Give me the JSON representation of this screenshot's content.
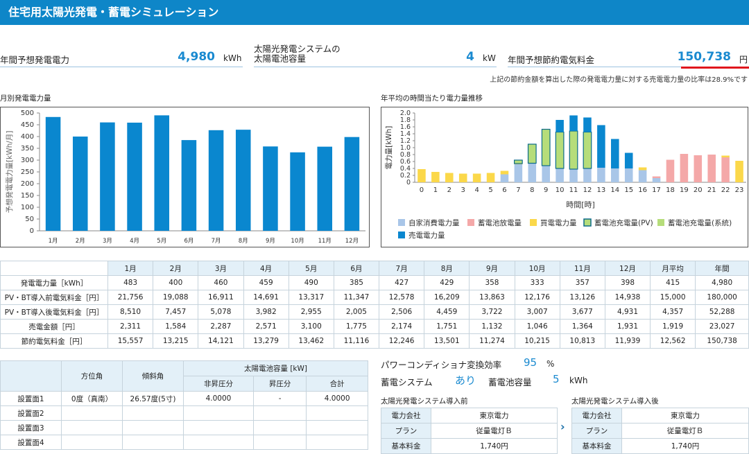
{
  "header": {
    "title": "住宅用太陽光発電・蓄電シミュレーション"
  },
  "kpis": {
    "annual_gen": {
      "label": "年間予想発電電力",
      "value": "4,980",
      "unit": "kWh"
    },
    "capacity": {
      "label_line1": "太陽光発電システムの",
      "label_line2": "太陽電池容量",
      "value": "4",
      "unit": "kW"
    },
    "savings": {
      "label": "年間予想節約電気料金",
      "value": "150,738",
      "unit": "円"
    },
    "note": "上記の節約金額を算出した際の発電電力量に対する売電電力量の比率は28.9%です"
  },
  "colors": {
    "accent": "#1a8ad0",
    "bar": "#0a87cf",
    "self": "#a9c6e8",
    "batt_dis": "#f4a8a8",
    "buy": "#fbd84a",
    "batt_pv": "#b6dd7a",
    "batt_sys": "#b6dd7a",
    "sell": "#0a87cf",
    "highlight": "#e0141c"
  },
  "monthly_chart": {
    "title": "月別発電電力量",
    "chart_data": {
      "type": "bar",
      "categories": [
        "1月",
        "2月",
        "3月",
        "4月",
        "5月",
        "6月",
        "7月",
        "8月",
        "9月",
        "10月",
        "11月",
        "12月"
      ],
      "values": [
        483,
        400,
        460,
        459,
        490,
        385,
        427,
        429,
        358,
        333,
        357,
        398
      ],
      "ylabel": "予想発電電力量[kWh/月]",
      "ylim": [
        0,
        500
      ],
      "yticks": [
        "0",
        "50",
        "100",
        "150",
        "200",
        "250",
        "300",
        "350",
        "400",
        "450",
        "500"
      ]
    }
  },
  "hourly_chart": {
    "title": "年平均の時間当たり電力量推移",
    "chart_data": {
      "type": "bar",
      "stacked": true,
      "categories": [
        "0",
        "1",
        "2",
        "3",
        "4",
        "5",
        "6",
        "7",
        "8",
        "9",
        "10",
        "11",
        "12",
        "13",
        "14",
        "15",
        "16",
        "17",
        "18",
        "19",
        "20",
        "21",
        "22",
        "23"
      ],
      "series": [
        {
          "name": "自家消費電力量",
          "values": [
            0,
            0,
            0,
            0,
            0,
            0,
            0.23,
            0.52,
            0.55,
            0.48,
            0.4,
            0.38,
            0.4,
            0.42,
            0.4,
            0.4,
            0.35,
            0.12,
            0,
            0,
            0,
            0,
            0,
            0
          ]
        },
        {
          "name": "蓄電池放電量",
          "values": [
            0,
            0,
            0,
            0,
            0,
            0,
            0,
            0,
            0,
            0,
            0,
            0,
            0,
            0,
            0,
            0,
            0,
            0.05,
            0.65,
            0.82,
            0.78,
            0.8,
            0.72,
            0
          ]
        },
        {
          "name": "買電電力量",
          "values": [
            0.38,
            0.3,
            0.27,
            0.25,
            0.25,
            0.27,
            0.1,
            0.02,
            0,
            0,
            0,
            0,
            0,
            0,
            0,
            0,
            0.08,
            0,
            0,
            0,
            0,
            0,
            0.05,
            0.62
          ]
        },
        {
          "name": "蓄電池充電量(PV)",
          "values": [
            0,
            0,
            0,
            0,
            0,
            0,
            0,
            0.1,
            0.55,
            1.05,
            1.05,
            1.1,
            1.05,
            0,
            0,
            0,
            0,
            0,
            0,
            0,
            0,
            0,
            0,
            0
          ]
        },
        {
          "name": "蓄電池充電量(系統)",
          "values": [
            0,
            0,
            0,
            0,
            0,
            0,
            0,
            0,
            0,
            0,
            0,
            0,
            0,
            0,
            0,
            0,
            0,
            0,
            0,
            0,
            0,
            0,
            0,
            0
          ]
        },
        {
          "name": "売電電力量",
          "values": [
            0,
            0,
            0,
            0,
            0,
            0,
            0,
            0,
            0,
            0,
            0.35,
            0.45,
            0.42,
            1.23,
            0.85,
            0.45,
            0,
            0,
            0,
            0,
            0,
            0,
            0,
            0
          ]
        }
      ],
      "xlabel": "時間[時]",
      "ylabel": "電力量[kWh]",
      "ylim": [
        0,
        2.0
      ],
      "yticks": [
        "0",
        "0.2",
        "0.4",
        "0.6",
        "0.8",
        "1.0",
        "1.2",
        "1.4",
        "1.6",
        "1.8",
        "2.0"
      ]
    }
  },
  "data_table": {
    "headers": [
      "",
      "1月",
      "2月",
      "3月",
      "4月",
      "5月",
      "6月",
      "7月",
      "8月",
      "9月",
      "10月",
      "11月",
      "12月",
      "月平均",
      "年間"
    ],
    "rows": [
      [
        "発電電力量［kWh］",
        "483",
        "400",
        "460",
        "459",
        "490",
        "385",
        "427",
        "429",
        "358",
        "333",
        "357",
        "398",
        "415",
        "4,980"
      ],
      [
        "PV・BT導入前電気料金［円］",
        "21,756",
        "19,088",
        "16,911",
        "14,691",
        "13,317",
        "11,347",
        "12,578",
        "16,209",
        "13,863",
        "12,176",
        "13,126",
        "14,938",
        "15,000",
        "180,000"
      ],
      [
        "PV・BT導入後電気料金［円］",
        "8,510",
        "7,457",
        "5,078",
        "3,982",
        "2,955",
        "2,005",
        "2,506",
        "4,459",
        "3,722",
        "3,007",
        "3,677",
        "4,931",
        "4,357",
        "52,288"
      ],
      [
        "売電金額［円］",
        "2,311",
        "1,584",
        "2,287",
        "2,571",
        "3,100",
        "1,775",
        "2,174",
        "1,751",
        "1,132",
        "1,046",
        "1,364",
        "1,931",
        "1,919",
        "23,027"
      ],
      [
        "節約電気料金［円］",
        "15,557",
        "13,215",
        "14,121",
        "13,279",
        "13,462",
        "11,116",
        "12,246",
        "13,501",
        "11,274",
        "10,215",
        "10,813",
        "11,939",
        "12,562",
        "150,738"
      ]
    ]
  },
  "surface_table": {
    "h_azimuth": "方位角",
    "h_tilt": "傾斜角",
    "h_capacity": "太陽電池容量 [kW]",
    "h_no_boost": "非昇圧分",
    "h_boost": "昇圧分",
    "h_total": "合計",
    "rows": [
      [
        "設置面1",
        "0度（真南）",
        "26.57度(5寸)",
        "4.0000",
        "-",
        "4.0000"
      ],
      [
        "設置面2",
        "",
        "",
        "",
        "",
        ""
      ],
      [
        "設置面3",
        "",
        "",
        "",
        "",
        ""
      ],
      [
        "設置面4",
        "",
        "",
        "",
        "",
        ""
      ]
    ]
  },
  "system": {
    "pcs_label": "パワーコンディショナ変換効率",
    "pcs_value": "95",
    "pcs_unit": "%",
    "storage_label": "蓄電システム",
    "storage_value": "あり",
    "battery_label": "蓄電池容量",
    "battery_value": "5",
    "battery_unit": "kWh"
  },
  "plans": {
    "before_title": "太陽光発電システム導入前",
    "after_title": "太陽光発電システム導入後",
    "keys": [
      "電力会社",
      "プラン",
      "基本料金"
    ],
    "before": [
      "東京電力",
      "従量電灯Ｂ",
      "1,740円"
    ],
    "after": [
      "東京電力",
      "従量電灯Ｂ",
      "1,740円"
    ]
  }
}
